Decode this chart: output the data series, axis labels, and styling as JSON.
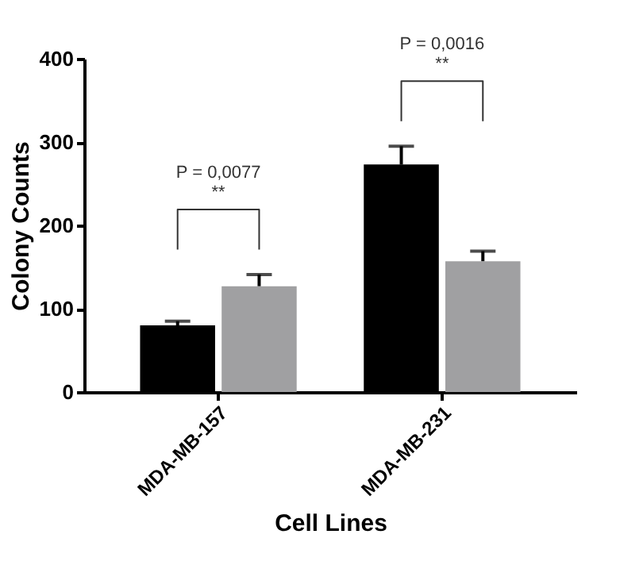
{
  "chart_data": {
    "type": "bar",
    "xlabel": "Cell Lines",
    "ylabel": "Colony Counts",
    "categories": [
      "MDA-MB-157",
      "MDA-MB-231"
    ],
    "series": [
      {
        "color": "#000000",
        "values": [
          80,
          273
        ],
        "errors": [
          [
            80,
            85
          ],
          [
            273,
            295
          ]
        ]
      },
      {
        "color": "#a0a0a2",
        "values": [
          127,
          157
        ],
        "errors": [
          [
            127,
            141
          ],
          [
            157,
            169
          ]
        ]
      }
    ],
    "ylim": [
      0,
      400
    ],
    "yticks": [
      0,
      100,
      200,
      300,
      400
    ],
    "grid": false,
    "legend": false,
    "annotations": [
      "P = 0,0077",
      "**",
      "P = 0,0016",
      "**"
    ]
  }
}
